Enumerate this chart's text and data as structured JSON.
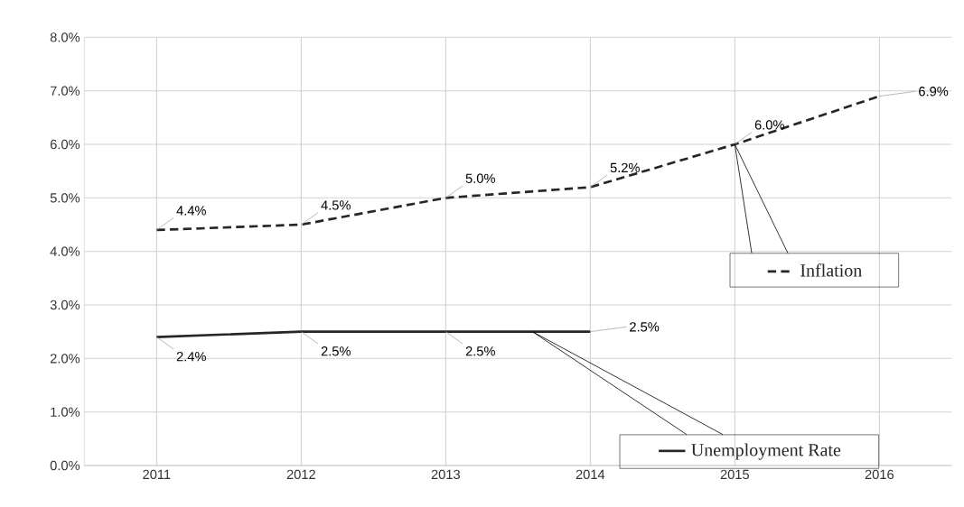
{
  "chart_data": {
    "type": "line",
    "categories": [
      "2011",
      "2012",
      "2013",
      "2014",
      "2015",
      "2016"
    ],
    "series": [
      {
        "name": "Inflation",
        "color": "#262626",
        "line_style": "dashed",
        "values": [
          4.4,
          4.5,
          5.0,
          5.2,
          6.0,
          6.9
        ],
        "value_labels": [
          "4.4%",
          "4.5%",
          "5.0%",
          "5.2%",
          "6.0%",
          "6.9%"
        ]
      },
      {
        "name": "Unemployment Rate",
        "color": "#262626",
        "line_style": "solid",
        "values": [
          2.4,
          2.5,
          2.5,
          2.5,
          null,
          null
        ],
        "value_labels": [
          "2.4%",
          "2.5%",
          "2.5%",
          "2.5%",
          null,
          null
        ]
      }
    ],
    "ylim": [
      0,
      8
    ],
    "yticks": [
      {
        "value": 0,
        "label": "0.0%"
      },
      {
        "value": 1,
        "label": "1.0%"
      },
      {
        "value": 2,
        "label": "2.0%"
      },
      {
        "value": 3,
        "label": "3.0%"
      },
      {
        "value": 4,
        "label": "4.0%"
      },
      {
        "value": 5,
        "label": "5.0%"
      },
      {
        "value": 6,
        "label": "6.0%"
      },
      {
        "value": 7,
        "label": "7.0%"
      },
      {
        "value": 8,
        "label": "8.0%"
      }
    ],
    "grid": true,
    "legend": "bottom right"
  }
}
